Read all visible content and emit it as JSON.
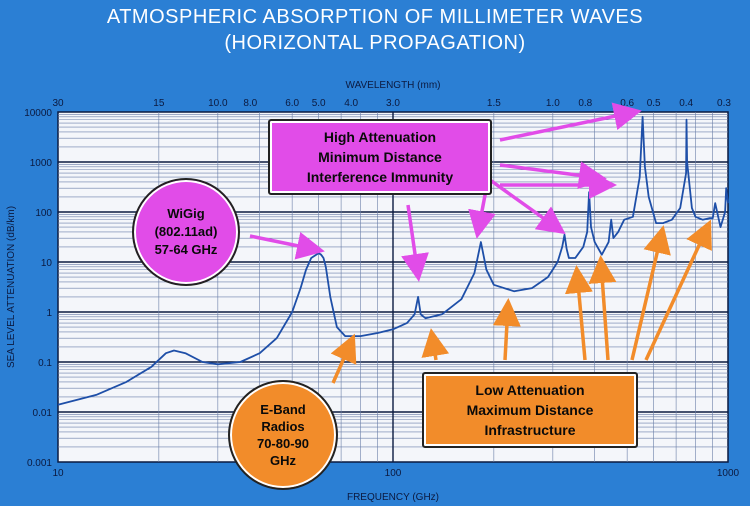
{
  "title_line1": "ATMOSPHERIC ABSORPTION OF MILLIMETER WAVES",
  "title_line2": "(HORIZONTAL PROPAGATION)",
  "annotations": {
    "high": "High Attenuation\nMinimum Distance\nInterference Immunity",
    "low": "Low Attenuation\nMaximum Distance\nInfrastructure",
    "wigig": "WiGig\n(802.11ad)\n57-64 GHz",
    "eband": "E-Band\nRadios\n70-80-90\nGHz"
  },
  "colors": {
    "background": "#2b7fd4",
    "plot_area": "#f4f6fa",
    "curve": "#1e4fa8",
    "magenta": "#e14ce8",
    "orange": "#f28c2a"
  },
  "chart_data": {
    "type": "line",
    "xlabel": "FREQUENCY  (GHz)",
    "ylabel": "SEA LEVEL ATTENUATION   (dB/km)",
    "x2label": "WAVELENGTH  (mm)",
    "xscale": "log",
    "yscale": "log",
    "xlim": [
      10,
      1000
    ],
    "ylim": [
      0.001,
      10000
    ],
    "grid": true,
    "x_tick_labels": [
      "10",
      "100",
      "1000"
    ],
    "y_tick_labels": [
      "0.001",
      "0.01",
      "0.1",
      "1",
      "10",
      "100",
      "1000",
      "10000"
    ],
    "wavelength_tick_labels": [
      "30",
      "15",
      "10.0",
      "8.0",
      "6.0",
      "5.0",
      "4.0",
      "3.0",
      "1.5",
      "1.0",
      "0.8",
      "0.6",
      "0.5",
      "0.4",
      "0.3"
    ],
    "series": [
      {
        "x": [
          10,
          13,
          16,
          19,
          21,
          22.2,
          24,
          27,
          30,
          35,
          40,
          45,
          50,
          53,
          55,
          57,
          59,
          60,
          61,
          62,
          63,
          65,
          68,
          72,
          80,
          90,
          100,
          110,
          116,
          118.8,
          121,
          125,
          140,
          160,
          175,
          183,
          190,
          200,
          230,
          260,
          290,
          310,
          320,
          325,
          330,
          335,
          350,
          370,
          380,
          385,
          390,
          400,
          420,
          440,
          448,
          455,
          470,
          490,
          520,
          545,
          556,
          565,
          580,
          610,
          640,
          680,
          720,
          750,
          752,
          755,
          780,
          800,
          840,
          880,
          900,
          916,
          935,
          950,
          980,
          988,
          1000
        ],
        "y": [
          0.014,
          0.022,
          0.04,
          0.08,
          0.15,
          0.17,
          0.15,
          0.1,
          0.09,
          0.1,
          0.15,
          0.3,
          1.0,
          3.0,
          7.0,
          12,
          14,
          15,
          14,
          12,
          8,
          2.0,
          0.5,
          0.33,
          0.33,
          0.38,
          0.45,
          0.6,
          0.9,
          2.0,
          0.9,
          0.75,
          0.9,
          1.8,
          6.0,
          25,
          7.0,
          3.5,
          2.6,
          3.0,
          5.0,
          10,
          20,
          35,
          18,
          12,
          12,
          20,
          40,
          250,
          50,
          25,
          14,
          25,
          70,
          30,
          40,
          70,
          80,
          500,
          8000,
          800,
          200,
          60,
          60,
          70,
          120,
          600,
          7000,
          1000,
          120,
          80,
          70,
          75,
          75,
          150,
          80,
          50,
          100,
          300,
          150
        ]
      }
    ]
  }
}
